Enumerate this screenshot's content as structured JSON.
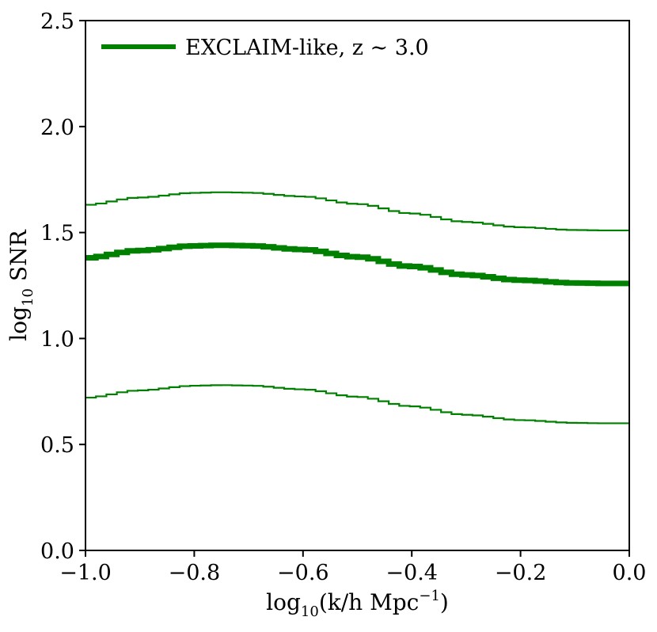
{
  "chart_data": {
    "type": "line",
    "xlim": [
      -1.0,
      0.0
    ],
    "ylim": [
      0.0,
      2.5
    ],
    "x_ticks": [
      -1.0,
      -0.8,
      -0.6,
      -0.4,
      -0.2,
      0.0
    ],
    "x_tick_labels": [
      "−1.0",
      "−0.8",
      "−0.6",
      "−0.4",
      "−0.2",
      "0.0"
    ],
    "y_ticks": [
      0.0,
      0.5,
      1.0,
      1.5,
      2.0,
      2.5
    ],
    "y_tick_labels": [
      "0.0",
      "0.5",
      "1.0",
      "1.5",
      "2.0",
      "2.5"
    ],
    "xlabel": {
      "pre": "log",
      "sub": "10",
      "post": "(k/h Mpc",
      "sup": "−1",
      "close": ")"
    },
    "ylabel": {
      "pre": "log",
      "sub": "10",
      "post": " SNR"
    },
    "legend": {
      "label": "EXCLAIM-like, z ∼ 3.0",
      "placement": "top-left",
      "color": "#008000"
    },
    "grid": false,
    "step_style": "stairs",
    "series": [
      {
        "name": "EXCLAIM-like, z ∼ 3.0",
        "role": "median",
        "color": "#008000",
        "linewidth": "thick",
        "x": [
          -1.0,
          -0.9,
          -0.8,
          -0.75,
          -0.7,
          -0.6,
          -0.5,
          -0.4,
          -0.3,
          -0.2,
          -0.1,
          -0.05,
          0.0
        ],
        "y": [
          1.38,
          1.415,
          1.437,
          1.44,
          1.438,
          1.42,
          1.385,
          1.34,
          1.3,
          1.275,
          1.262,
          1.26,
          1.26
        ]
      },
      {
        "role": "upper",
        "color": "#008000",
        "linewidth": "thin",
        "x": [
          -1.0,
          -0.9,
          -0.8,
          -0.75,
          -0.7,
          -0.6,
          -0.5,
          -0.4,
          -0.3,
          -0.2,
          -0.1,
          -0.05,
          0.0
        ],
        "y": [
          1.63,
          1.665,
          1.687,
          1.69,
          1.688,
          1.67,
          1.635,
          1.59,
          1.55,
          1.525,
          1.512,
          1.51,
          1.51
        ]
      },
      {
        "role": "lower",
        "color": "#008000",
        "linewidth": "thin",
        "x": [
          -1.0,
          -0.9,
          -0.8,
          -0.75,
          -0.7,
          -0.6,
          -0.5,
          -0.4,
          -0.3,
          -0.2,
          -0.1,
          -0.05,
          0.0
        ],
        "y": [
          0.72,
          0.755,
          0.777,
          0.78,
          0.778,
          0.76,
          0.725,
          0.68,
          0.64,
          0.615,
          0.602,
          0.6,
          0.6
        ]
      }
    ]
  }
}
